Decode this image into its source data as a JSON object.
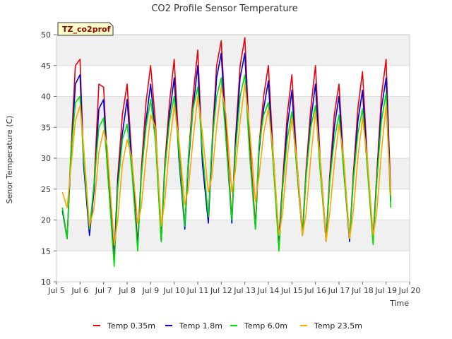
{
  "chart_data": {
    "type": "line",
    "title": "CO2 Profile Sensor Temperature",
    "xlabel": "Time",
    "ylabel": "Senor Temperature (C)",
    "badge": "TZ_co2prof",
    "xlim": [
      5,
      20
    ],
    "ylim": [
      10,
      50
    ],
    "x_ticks": [
      5,
      6,
      7,
      8,
      9,
      10,
      11,
      12,
      13,
      14,
      15,
      16,
      17,
      18,
      19,
      20
    ],
    "x_tick_labels": [
      "Jul 5",
      "Jul 6",
      "Jul 7",
      "Jul 8",
      "Jul 9",
      "Jul 10",
      "Jul 11",
      "Jul 12",
      "Jul 13",
      "Jul 14",
      "Jul 15",
      "Jul 16",
      "Jul 17",
      "Jul 18",
      "Jul 19",
      "Jul 20"
    ],
    "y_ticks": [
      10,
      15,
      20,
      25,
      30,
      35,
      40,
      45,
      50
    ],
    "y_tick_labels": [
      "10",
      "15",
      "20",
      "25",
      "30",
      "35",
      "40",
      "45",
      "50"
    ],
    "grid": true,
    "legend_position": "bottom",
    "series": [
      {
        "name": "Temp 0.35m",
        "color": "#e8000b",
        "x": [
          5.25,
          5.45,
          5.6,
          5.8,
          6.0,
          6.15,
          6.4,
          6.6,
          6.8,
          7.0,
          7.15,
          7.45,
          7.6,
          7.8,
          8.0,
          8.2,
          8.45,
          8.6,
          8.8,
          9.0,
          9.2,
          9.45,
          9.6,
          9.8,
          10.0,
          10.2,
          10.45,
          10.6,
          10.8,
          11.0,
          11.2,
          11.45,
          11.6,
          11.8,
          12.0,
          12.2,
          12.45,
          12.6,
          12.8,
          13.0,
          13.2,
          13.45,
          13.6,
          13.8,
          14.0,
          14.2,
          14.45,
          14.6,
          14.8,
          15.0,
          15.2,
          15.45,
          15.6,
          15.8,
          16.0,
          16.2,
          16.45,
          16.6,
          16.8,
          17.0,
          17.2,
          17.45,
          17.6,
          17.8,
          18.0,
          18.2,
          18.45,
          18.6,
          18.8,
          19.0,
          19.2
        ],
        "y": [
          22.0,
          17.0,
          30.0,
          45.0,
          46.0,
          30.0,
          18.0,
          26.0,
          42.0,
          41.5,
          30.0,
          14.0,
          27.0,
          37.0,
          42.0,
          30.0,
          16.0,
          28.0,
          39.0,
          45.0,
          36.0,
          17.0,
          29.0,
          39.0,
          46.0,
          32.0,
          19.0,
          30.0,
          40.0,
          47.5,
          30.0,
          20.0,
          32.0,
          45.0,
          49.0,
          35.0,
          20.0,
          33.0,
          45.0,
          49.5,
          33.0,
          19.0,
          32.0,
          40.0,
          45.0,
          31.0,
          17.0,
          26.0,
          37.0,
          43.5,
          30.0,
          18.0,
          28.0,
          38.0,
          45.0,
          30.0,
          17.0,
          27.0,
          37.0,
          42.0,
          29.0,
          17.0,
          27.0,
          38.0,
          44.0,
          30.0,
          17.0,
          27.0,
          40.0,
          46.0,
          24.0
        ]
      },
      {
        "name": "Temp 1.8m",
        "color": "#0000d0",
        "x": [
          5.25,
          5.45,
          5.6,
          5.8,
          6.0,
          6.15,
          6.4,
          6.6,
          6.8,
          7.0,
          7.15,
          7.45,
          7.6,
          7.8,
          8.0,
          8.2,
          8.45,
          8.6,
          8.8,
          9.0,
          9.2,
          9.45,
          9.6,
          9.8,
          10.0,
          10.2,
          10.45,
          10.6,
          10.8,
          11.0,
          11.2,
          11.45,
          11.6,
          11.8,
          12.0,
          12.2,
          12.45,
          12.6,
          12.8,
          13.0,
          13.2,
          13.45,
          13.6,
          13.8,
          14.0,
          14.2,
          14.45,
          14.6,
          14.8,
          15.0,
          15.2,
          15.45,
          15.6,
          15.8,
          16.0,
          16.2,
          16.45,
          16.6,
          16.8,
          17.0,
          17.2,
          17.45,
          17.6,
          17.8,
          18.0,
          18.2,
          18.45,
          18.6,
          18.8,
          19.0,
          19.2
        ],
        "y": [
          21.5,
          17.0,
          29.0,
          42.0,
          43.5,
          29.0,
          17.5,
          25.0,
          38.0,
          39.5,
          29.0,
          13.5,
          26.0,
          34.0,
          39.5,
          29.0,
          15.5,
          27.0,
          36.0,
          42.0,
          34.0,
          16.5,
          28.0,
          37.0,
          43.0,
          30.0,
          18.5,
          29.0,
          38.0,
          45.0,
          29.0,
          19.5,
          31.0,
          43.0,
          47.0,
          33.0,
          19.5,
          32.0,
          43.0,
          47.0,
          31.0,
          18.5,
          31.0,
          38.0,
          42.5,
          29.5,
          16.5,
          25.0,
          35.0,
          41.0,
          28.5,
          17.5,
          27.0,
          36.0,
          42.0,
          29.0,
          16.5,
          26.0,
          35.0,
          40.0,
          28.0,
          16.5,
          26.0,
          36.0,
          41.0,
          29.0,
          16.5,
          26.0,
          38.0,
          43.0,
          23.0
        ]
      },
      {
        "name": "Temp 6.0m",
        "color": "#00dd00",
        "x": [
          5.25,
          5.45,
          5.6,
          5.8,
          6.0,
          6.15,
          6.4,
          6.6,
          6.8,
          7.0,
          7.15,
          7.45,
          7.6,
          7.8,
          8.0,
          8.2,
          8.45,
          8.6,
          8.8,
          9.0,
          9.2,
          9.45,
          9.6,
          9.8,
          10.0,
          10.2,
          10.45,
          10.6,
          10.8,
          11.0,
          11.2,
          11.45,
          11.6,
          11.8,
          12.0,
          12.2,
          12.45,
          12.6,
          12.8,
          13.0,
          13.2,
          13.45,
          13.6,
          13.8,
          14.0,
          14.2,
          14.45,
          14.6,
          14.8,
          15.0,
          15.2,
          15.45,
          15.6,
          15.8,
          16.0,
          16.2,
          16.45,
          16.6,
          16.8,
          17.0,
          17.2,
          17.45,
          17.6,
          17.8,
          18.0,
          18.2,
          18.45,
          18.6,
          18.8,
          19.0,
          19.2
        ],
        "y": [
          22.0,
          17.0,
          30.0,
          39.0,
          40.0,
          30.0,
          18.5,
          26.0,
          35.0,
          36.5,
          29.0,
          12.5,
          25.0,
          33.0,
          35.5,
          28.0,
          15.0,
          27.0,
          35.0,
          39.5,
          33.0,
          16.5,
          28.0,
          36.0,
          40.0,
          31.0,
          19.0,
          30.0,
          38.0,
          41.5,
          31.0,
          20.5,
          32.0,
          40.0,
          43.0,
          33.0,
          20.0,
          31.0,
          40.0,
          43.5,
          31.0,
          18.5,
          32.0,
          37.0,
          39.0,
          29.5,
          15.0,
          25.0,
          33.0,
          37.5,
          28.5,
          17.5,
          27.0,
          35.0,
          38.5,
          28.0,
          16.5,
          26.0,
          33.0,
          37.0,
          28.0,
          17.0,
          26.0,
          34.0,
          38.0,
          28.5,
          16.0,
          26.0,
          36.0,
          40.5,
          22.0
        ]
      },
      {
        "name": "Temp 23.5m",
        "color": "#ffa500",
        "x": [
          5.25,
          5.45,
          5.6,
          5.8,
          6.0,
          6.15,
          6.4,
          6.6,
          6.8,
          7.0,
          7.15,
          7.45,
          7.6,
          7.8,
          8.0,
          8.2,
          8.45,
          8.6,
          8.8,
          9.0,
          9.2,
          9.45,
          9.6,
          9.8,
          10.0,
          10.2,
          10.45,
          10.6,
          10.8,
          11.0,
          11.2,
          11.45,
          11.6,
          11.8,
          12.0,
          12.2,
          12.45,
          12.6,
          12.8,
          13.0,
          13.2,
          13.45,
          13.6,
          13.8,
          14.0,
          14.2,
          14.45,
          14.6,
          14.8,
          15.0,
          15.2,
          15.45,
          15.6,
          15.8,
          16.0,
          16.2,
          16.45,
          16.6,
          16.8,
          17.0,
          17.2,
          17.45,
          17.6,
          17.8,
          18.0,
          18.2,
          18.45,
          18.6,
          18.8,
          19.0,
          19.2
        ],
        "y": [
          24.5,
          22.0,
          28.0,
          36.0,
          38.5,
          32.0,
          19.0,
          22.0,
          31.0,
          34.5,
          32.0,
          16.0,
          20.0,
          29.0,
          33.0,
          30.0,
          19.5,
          22.0,
          30.0,
          37.0,
          35.0,
          19.0,
          23.0,
          32.0,
          38.5,
          33.0,
          22.5,
          25.0,
          33.0,
          40.0,
          34.0,
          24.5,
          27.0,
          35.0,
          41.5,
          37.0,
          24.5,
          28.0,
          36.0,
          42.0,
          35.0,
          23.0,
          27.0,
          34.0,
          38.0,
          31.0,
          17.5,
          21.0,
          30.0,
          36.5,
          30.0,
          17.5,
          21.0,
          30.0,
          37.5,
          30.0,
          16.5,
          21.0,
          29.0,
          35.5,
          30.0,
          17.0,
          21.0,
          30.0,
          36.5,
          30.0,
          17.5,
          21.0,
          31.0,
          38.5,
          24.0
        ]
      }
    ]
  }
}
